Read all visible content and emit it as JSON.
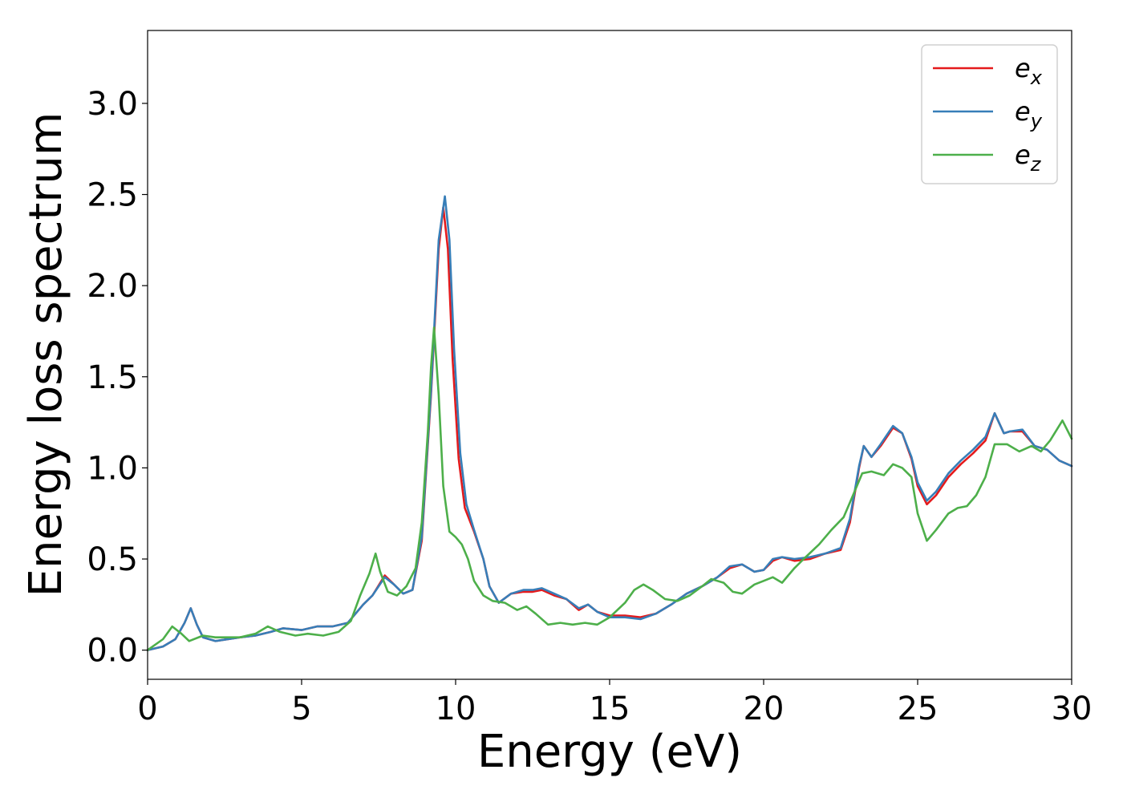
{
  "chart_data": {
    "type": "line",
    "title": "",
    "xlabel": "Energy (eV)",
    "ylabel": "Energy loss spectrum",
    "xlim": [
      0,
      30
    ],
    "ylim": [
      -0.16,
      3.4
    ],
    "xticks": [
      0,
      5,
      10,
      15,
      20,
      25,
      30
    ],
    "xtick_labels": [
      "0",
      "5",
      "10",
      "15",
      "20",
      "25",
      "30"
    ],
    "yticks": [
      0.0,
      0.5,
      1.0,
      1.5,
      2.0,
      2.5,
      3.0
    ],
    "ytick_labels": [
      "0.0",
      "0.5",
      "1.0",
      "1.5",
      "2.0",
      "2.5",
      "3.0"
    ],
    "grid": false,
    "legend_position": "top-right",
    "series": [
      {
        "name": "e_x",
        "legend_base": "e",
        "legend_sub": "x",
        "color": "#e41a1c",
        "points": [
          [
            0,
            0
          ],
          [
            0.5,
            0.02
          ],
          [
            0.9,
            0.06
          ],
          [
            1.2,
            0.15
          ],
          [
            1.4,
            0.23
          ],
          [
            1.6,
            0.14
          ],
          [
            1.8,
            0.07
          ],
          [
            2.2,
            0.05
          ],
          [
            3.0,
            0.07
          ],
          [
            3.5,
            0.08
          ],
          [
            4.0,
            0.1
          ],
          [
            4.4,
            0.12
          ],
          [
            5.0,
            0.11
          ],
          [
            5.5,
            0.13
          ],
          [
            6.0,
            0.13
          ],
          [
            6.5,
            0.15
          ],
          [
            7.0,
            0.25
          ],
          [
            7.3,
            0.3
          ],
          [
            7.7,
            0.41
          ],
          [
            8.0,
            0.36
          ],
          [
            8.3,
            0.31
          ],
          [
            8.6,
            0.33
          ],
          [
            8.9,
            0.6
          ],
          [
            9.2,
            1.4
          ],
          [
            9.45,
            2.2
          ],
          [
            9.6,
            2.43
          ],
          [
            9.75,
            2.2
          ],
          [
            9.9,
            1.6
          ],
          [
            10.1,
            1.05
          ],
          [
            10.3,
            0.78
          ],
          [
            10.6,
            0.65
          ],
          [
            10.9,
            0.5
          ],
          [
            11.1,
            0.35
          ],
          [
            11.4,
            0.26
          ],
          [
            11.8,
            0.31
          ],
          [
            12.2,
            0.32
          ],
          [
            12.5,
            0.32
          ],
          [
            12.8,
            0.33
          ],
          [
            13.2,
            0.3
          ],
          [
            13.6,
            0.28
          ],
          [
            14.0,
            0.22
          ],
          [
            14.3,
            0.25
          ],
          [
            14.6,
            0.21
          ],
          [
            15.0,
            0.19
          ],
          [
            15.5,
            0.19
          ],
          [
            16.0,
            0.18
          ],
          [
            16.5,
            0.2
          ],
          [
            17.0,
            0.25
          ],
          [
            17.5,
            0.31
          ],
          [
            18.0,
            0.35
          ],
          [
            18.5,
            0.4
          ],
          [
            18.9,
            0.45
          ],
          [
            19.3,
            0.47
          ],
          [
            19.7,
            0.43
          ],
          [
            20.0,
            0.44
          ],
          [
            20.3,
            0.49
          ],
          [
            20.6,
            0.51
          ],
          [
            21.0,
            0.49
          ],
          [
            21.5,
            0.5
          ],
          [
            22.0,
            0.53
          ],
          [
            22.5,
            0.55
          ],
          [
            22.8,
            0.7
          ],
          [
            23.1,
            1.0
          ],
          [
            23.25,
            1.12
          ],
          [
            23.5,
            1.06
          ],
          [
            23.8,
            1.12
          ],
          [
            24.2,
            1.22
          ],
          [
            24.5,
            1.19
          ],
          [
            24.8,
            1.05
          ],
          [
            25.0,
            0.9
          ],
          [
            25.3,
            0.8
          ],
          [
            25.6,
            0.85
          ],
          [
            26.0,
            0.95
          ],
          [
            26.4,
            1.02
          ],
          [
            26.8,
            1.08
          ],
          [
            27.2,
            1.15
          ],
          [
            27.5,
            1.3
          ],
          [
            27.8,
            1.19
          ],
          [
            28.0,
            1.2
          ],
          [
            28.4,
            1.2
          ],
          [
            28.8,
            1.12
          ],
          [
            29.2,
            1.1
          ],
          [
            29.6,
            1.04
          ],
          [
            30.0,
            1.01
          ]
        ]
      },
      {
        "name": "e_y",
        "legend_base": "e",
        "legend_sub": "y",
        "color": "#377eb8",
        "points": [
          [
            0,
            0
          ],
          [
            0.5,
            0.02
          ],
          [
            0.9,
            0.06
          ],
          [
            1.2,
            0.15
          ],
          [
            1.4,
            0.23
          ],
          [
            1.6,
            0.14
          ],
          [
            1.8,
            0.07
          ],
          [
            2.2,
            0.05
          ],
          [
            3.0,
            0.07
          ],
          [
            3.5,
            0.08
          ],
          [
            4.0,
            0.1
          ],
          [
            4.4,
            0.12
          ],
          [
            5.0,
            0.11
          ],
          [
            5.5,
            0.13
          ],
          [
            6.0,
            0.13
          ],
          [
            6.5,
            0.15
          ],
          [
            7.0,
            0.25
          ],
          [
            7.3,
            0.3
          ],
          [
            7.7,
            0.4
          ],
          [
            8.0,
            0.36
          ],
          [
            8.3,
            0.31
          ],
          [
            8.6,
            0.33
          ],
          [
            8.9,
            0.62
          ],
          [
            9.2,
            1.42
          ],
          [
            9.45,
            2.25
          ],
          [
            9.65,
            2.49
          ],
          [
            9.8,
            2.25
          ],
          [
            9.95,
            1.65
          ],
          [
            10.15,
            1.08
          ],
          [
            10.35,
            0.8
          ],
          [
            10.6,
            0.66
          ],
          [
            10.9,
            0.5
          ],
          [
            11.1,
            0.35
          ],
          [
            11.4,
            0.26
          ],
          [
            11.8,
            0.31
          ],
          [
            12.2,
            0.33
          ],
          [
            12.5,
            0.33
          ],
          [
            12.8,
            0.34
          ],
          [
            13.2,
            0.31
          ],
          [
            13.6,
            0.28
          ],
          [
            14.0,
            0.23
          ],
          [
            14.3,
            0.25
          ],
          [
            14.6,
            0.21
          ],
          [
            15.0,
            0.18
          ],
          [
            15.5,
            0.18
          ],
          [
            16.0,
            0.17
          ],
          [
            16.5,
            0.2
          ],
          [
            17.0,
            0.25
          ],
          [
            17.5,
            0.31
          ],
          [
            18.0,
            0.35
          ],
          [
            18.5,
            0.4
          ],
          [
            18.9,
            0.46
          ],
          [
            19.3,
            0.47
          ],
          [
            19.7,
            0.43
          ],
          [
            20.0,
            0.44
          ],
          [
            20.3,
            0.5
          ],
          [
            20.6,
            0.51
          ],
          [
            21.0,
            0.5
          ],
          [
            21.5,
            0.51
          ],
          [
            22.0,
            0.53
          ],
          [
            22.5,
            0.56
          ],
          [
            22.8,
            0.72
          ],
          [
            23.1,
            1.01
          ],
          [
            23.25,
            1.12
          ],
          [
            23.5,
            1.06
          ],
          [
            23.8,
            1.13
          ],
          [
            24.2,
            1.23
          ],
          [
            24.5,
            1.19
          ],
          [
            24.8,
            1.06
          ],
          [
            25.0,
            0.92
          ],
          [
            25.3,
            0.82
          ],
          [
            25.6,
            0.87
          ],
          [
            26.0,
            0.97
          ],
          [
            26.4,
            1.04
          ],
          [
            26.8,
            1.1
          ],
          [
            27.2,
            1.17
          ],
          [
            27.5,
            1.3
          ],
          [
            27.8,
            1.19
          ],
          [
            28.0,
            1.2
          ],
          [
            28.4,
            1.21
          ],
          [
            28.8,
            1.12
          ],
          [
            29.2,
            1.1
          ],
          [
            29.6,
            1.04
          ],
          [
            30.0,
            1.01
          ]
        ]
      },
      {
        "name": "e_z",
        "legend_base": "e",
        "legend_sub": "z",
        "color": "#4daf4a",
        "points": [
          [
            0,
            0
          ],
          [
            0.5,
            0.06
          ],
          [
            0.8,
            0.13
          ],
          [
            1.1,
            0.09
          ],
          [
            1.35,
            0.05
          ],
          [
            1.8,
            0.08
          ],
          [
            2.2,
            0.07
          ],
          [
            3.0,
            0.07
          ],
          [
            3.5,
            0.09
          ],
          [
            3.9,
            0.13
          ],
          [
            4.3,
            0.1
          ],
          [
            4.8,
            0.08
          ],
          [
            5.2,
            0.09
          ],
          [
            5.7,
            0.08
          ],
          [
            6.2,
            0.1
          ],
          [
            6.6,
            0.16
          ],
          [
            6.9,
            0.3
          ],
          [
            7.2,
            0.42
          ],
          [
            7.4,
            0.53
          ],
          [
            7.55,
            0.43
          ],
          [
            7.8,
            0.32
          ],
          [
            8.1,
            0.3
          ],
          [
            8.4,
            0.35
          ],
          [
            8.7,
            0.45
          ],
          [
            8.9,
            0.7
          ],
          [
            9.1,
            1.2
          ],
          [
            9.2,
            1.55
          ],
          [
            9.3,
            1.77
          ],
          [
            9.45,
            1.4
          ],
          [
            9.6,
            0.9
          ],
          [
            9.8,
            0.65
          ],
          [
            10.0,
            0.62
          ],
          [
            10.2,
            0.58
          ],
          [
            10.4,
            0.5
          ],
          [
            10.6,
            0.38
          ],
          [
            10.9,
            0.3
          ],
          [
            11.2,
            0.27
          ],
          [
            11.6,
            0.26
          ],
          [
            12.0,
            0.22
          ],
          [
            12.3,
            0.24
          ],
          [
            12.6,
            0.2
          ],
          [
            13.0,
            0.14
          ],
          [
            13.4,
            0.15
          ],
          [
            13.8,
            0.14
          ],
          [
            14.2,
            0.15
          ],
          [
            14.6,
            0.14
          ],
          [
            15.0,
            0.18
          ],
          [
            15.5,
            0.26
          ],
          [
            15.8,
            0.33
          ],
          [
            16.1,
            0.36
          ],
          [
            16.4,
            0.33
          ],
          [
            16.8,
            0.28
          ],
          [
            17.2,
            0.27
          ],
          [
            17.6,
            0.3
          ],
          [
            18.0,
            0.35
          ],
          [
            18.3,
            0.39
          ],
          [
            18.7,
            0.37
          ],
          [
            19.0,
            0.32
          ],
          [
            19.3,
            0.31
          ],
          [
            19.7,
            0.36
          ],
          [
            20.0,
            0.38
          ],
          [
            20.3,
            0.4
          ],
          [
            20.6,
            0.37
          ],
          [
            21.0,
            0.45
          ],
          [
            21.3,
            0.5
          ],
          [
            21.8,
            0.58
          ],
          [
            22.2,
            0.66
          ],
          [
            22.6,
            0.73
          ],
          [
            22.9,
            0.85
          ],
          [
            23.2,
            0.97
          ],
          [
            23.5,
            0.98
          ],
          [
            23.9,
            0.96
          ],
          [
            24.2,
            1.02
          ],
          [
            24.5,
            1.0
          ],
          [
            24.8,
            0.95
          ],
          [
            25.0,
            0.75
          ],
          [
            25.3,
            0.6
          ],
          [
            25.6,
            0.66
          ],
          [
            26.0,
            0.75
          ],
          [
            26.3,
            0.78
          ],
          [
            26.6,
            0.79
          ],
          [
            26.9,
            0.85
          ],
          [
            27.2,
            0.95
          ],
          [
            27.5,
            1.13
          ],
          [
            27.9,
            1.13
          ],
          [
            28.3,
            1.09
          ],
          [
            28.7,
            1.12
          ],
          [
            29.0,
            1.09
          ],
          [
            29.3,
            1.15
          ],
          [
            29.7,
            1.26
          ],
          [
            30.0,
            1.16
          ]
        ]
      }
    ]
  }
}
